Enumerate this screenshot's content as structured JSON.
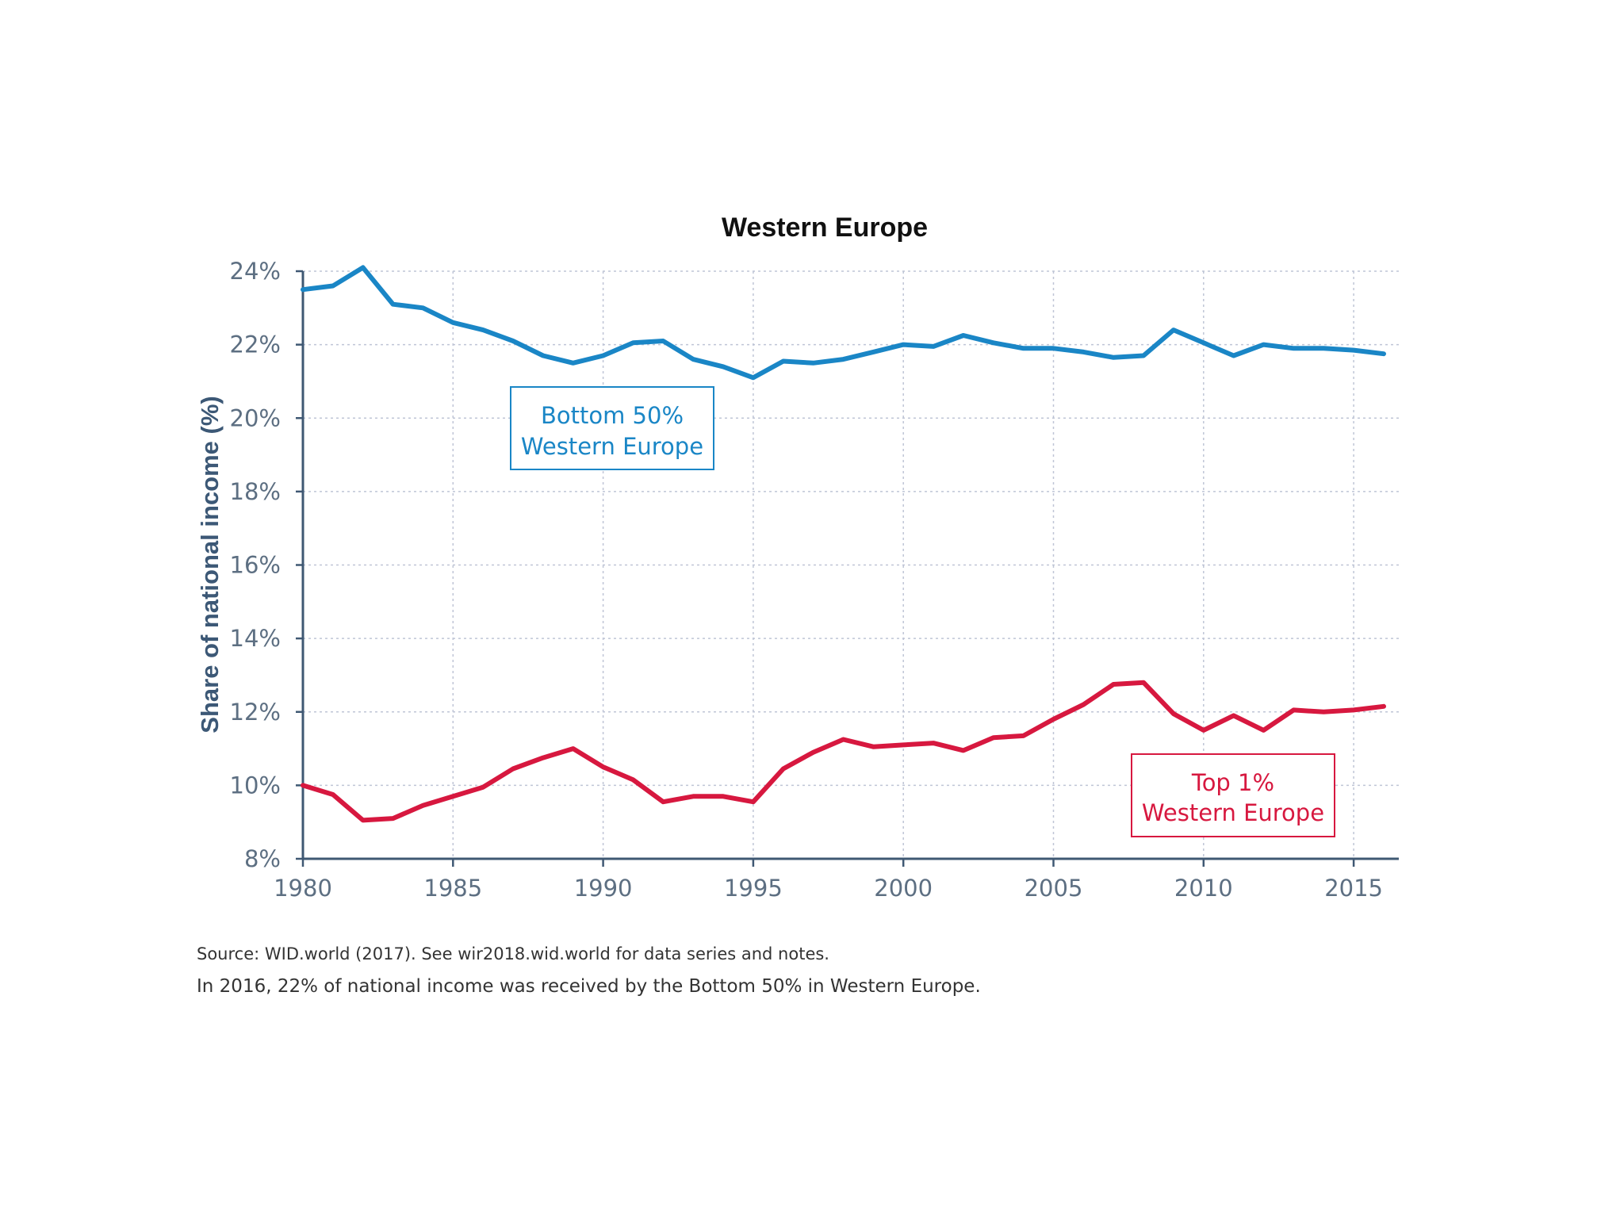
{
  "chart_data": {
    "type": "line",
    "title": "Western Europe",
    "xlabel": "",
    "ylabel": "Share of national income (%)",
    "xlim": [
      1980,
      2016
    ],
    "ylim": [
      8,
      24
    ],
    "grid": true,
    "x_ticks": [
      1980,
      1985,
      1990,
      1995,
      2000,
      2005,
      2010,
      2015
    ],
    "x_tick_labels": [
      "1980",
      "1985",
      "1990",
      "1995",
      "2000",
      "2005",
      "2010",
      "2015"
    ],
    "y_ticks": [
      8,
      10,
      12,
      14,
      16,
      18,
      20,
      22,
      24
    ],
    "y_tick_labels": [
      "8%",
      "10%",
      "12%",
      "14%",
      "16%",
      "18%",
      "20%",
      "22%",
      "24%"
    ],
    "x": [
      1980,
      1981,
      1982,
      1983,
      1984,
      1985,
      1986,
      1987,
      1988,
      1989,
      1990,
      1991,
      1992,
      1993,
      1994,
      1995,
      1996,
      1997,
      1998,
      1999,
      2000,
      2001,
      2002,
      2003,
      2004,
      2005,
      2006,
      2007,
      2008,
      2009,
      2010,
      2011,
      2012,
      2013,
      2014,
      2015,
      2016
    ],
    "series": [
      {
        "name": "Bottom 50% Western Europe",
        "label_lines": [
          "Bottom 50%",
          "Western Europe"
        ],
        "color": "#1a86c6",
        "values": [
          23.5,
          23.6,
          24.1,
          23.1,
          23.0,
          22.6,
          22.4,
          22.1,
          21.7,
          21.5,
          21.7,
          22.05,
          22.1,
          21.6,
          21.4,
          21.1,
          21.55,
          21.5,
          21.6,
          21.8,
          22.0,
          21.95,
          22.25,
          22.05,
          21.9,
          21.9,
          21.8,
          21.65,
          21.7,
          22.4,
          22.05,
          21.7,
          22.0,
          21.9,
          21.9,
          21.85,
          21.75
        ]
      },
      {
        "name": "Top 1% Western Europe",
        "label_lines": [
          "Top 1%",
          "Western Europe"
        ],
        "color": "#d7183f",
        "values": [
          10.0,
          9.75,
          9.05,
          9.1,
          9.45,
          9.7,
          9.95,
          10.45,
          10.75,
          11.0,
          10.5,
          10.15,
          9.55,
          9.7,
          9.7,
          9.55,
          10.45,
          10.9,
          11.25,
          11.05,
          11.1,
          11.15,
          10.95,
          11.3,
          11.35,
          11.8,
          12.2,
          12.75,
          12.8,
          11.95,
          11.5,
          11.9,
          11.5,
          12.05,
          12.0,
          12.05,
          12.15
        ]
      }
    ]
  },
  "notes": {
    "source": "Source:  WID.world (2017). See wir2018.wid.world for data series and notes.",
    "caption": "In 2016, 22% of national income was received by the Bottom 50% in Western Europe."
  },
  "colors": {
    "axis": "#3f5873",
    "grid": "#bfc5d6",
    "tick_text": "#5d6f82"
  }
}
